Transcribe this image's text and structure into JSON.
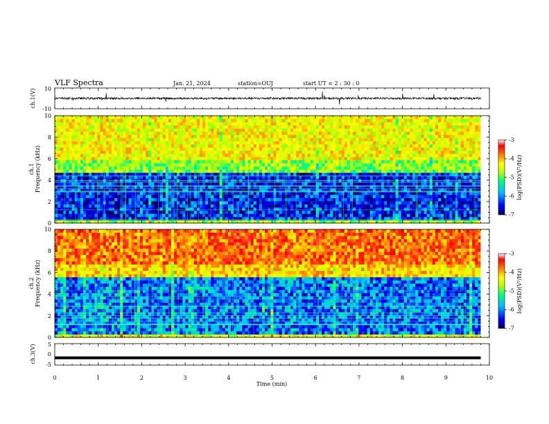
{
  "header": {
    "title": "VLF Spectra",
    "date": "Jan. 21, 2024",
    "station": "station=OUJ",
    "start": "start UT =  2 : 30 : 0"
  },
  "colorbar": {
    "label": "log(PSD)(V²/Hz)",
    "ticks": [
      "-3",
      "-4",
      "-5",
      "-6",
      "-7"
    ]
  },
  "chart_data": [
    {
      "type": "line",
      "name": "ch1-waveform",
      "ylabel": "ch.1(V)",
      "ylim": [
        -10,
        10
      ],
      "y_ticks": [
        "10",
        "-10"
      ],
      "x_range": [
        0,
        10
      ],
      "trace_level": 0,
      "trace_amplitude": 2
    },
    {
      "type": "heatmap",
      "name": "ch1-spectrogram",
      "ylabel": "ch.1\nFrequency (kHz)",
      "ylim": [
        0,
        10
      ],
      "y_ticks": [
        "0",
        "2",
        "4",
        "6",
        "8",
        "10"
      ],
      "x_range": [
        0,
        9.8
      ],
      "z_range": [
        -7,
        -3
      ],
      "colorscale": [
        "#000060",
        "#0000ff",
        "#00c0ff",
        "#00ff80",
        "#c0ff00",
        "#ffff00",
        "#ff8000",
        "#ff0000",
        "#ffffff"
      ],
      "low_band_top_khz": 4.8,
      "low_band_level": -6.5,
      "high_band_level": -4.6
    },
    {
      "type": "heatmap",
      "name": "ch2-spectrogram",
      "ylabel": "ch.2\nFrequency (kHz)",
      "ylim": [
        0,
        10
      ],
      "y_ticks": [
        "0",
        "2",
        "4",
        "6",
        "8",
        "10"
      ],
      "x_range": [
        0,
        9.8
      ],
      "z_range": [
        -7,
        -3
      ],
      "low_band_top_khz": 5.5,
      "low_band_level": -6.2,
      "high_band_level": -3.9
    },
    {
      "type": "line",
      "name": "ch3-waveform",
      "ylabel": "ch.3(V)",
      "ylim": [
        -5,
        5
      ],
      "y_ticks": [
        "5",
        "0",
        "-5"
      ],
      "x_range": [
        0,
        9.8
      ],
      "trace_level": -1.6
    }
  ],
  "x_axis": {
    "label": "Time (min)",
    "ticks": [
      "0",
      "1",
      "2",
      "3",
      "4",
      "5",
      "6",
      "7",
      "8",
      "9",
      "10"
    ],
    "range": [
      0,
      10
    ]
  }
}
